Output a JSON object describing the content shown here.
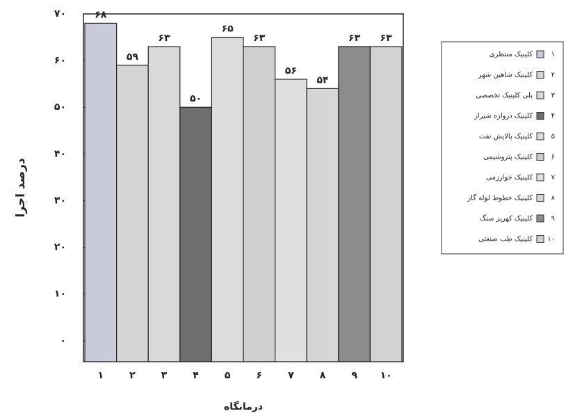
{
  "chart_data": {
    "type": "bar",
    "y_label": "درصد اجرا",
    "x_label": "درمانگاه",
    "categories": [
      "۱",
      "۲",
      "۳",
      "۴",
      "۵",
      "۶",
      "۷",
      "۸",
      "۹",
      "۱۰"
    ],
    "values": [
      68,
      59,
      63,
      50,
      65,
      63,
      56,
      54,
      63,
      63
    ],
    "value_labels": [
      "۶۸",
      "۵۹",
      "۶۳",
      "۵۰",
      "۶۵",
      "۶۳",
      "۵۶",
      "۵۴",
      "۶۳",
      "۶۳"
    ],
    "colors": [
      "#c9cbd8",
      "#d4d4d4",
      "#d9d9d9",
      "#6e6e6e",
      "#dcdcdc",
      "#cfcfcf",
      "#e0e0e0",
      "#d6d6d6",
      "#8c8c8c",
      "#d2d2d2"
    ],
    "legend": [
      "کلینیک منتظری",
      "کلینیک شاهین شهر",
      "پلی کلینیک تخصصی",
      "کلینیک دروازه شیراز",
      "کلینیک پالایش نفت",
      "کلینیک پتروشیمی",
      "کلینیک خوارزمی",
      "کلینیک خطوط لوله گاز",
      "کلینیک کهریز سنگ",
      "کلینیک طب صنعتی"
    ],
    "ylim": [
      -4.5,
      70
    ],
    "yticks": [
      {
        "value": 0,
        "label": "۰"
      },
      {
        "value": 10,
        "label": "۱۰"
      },
      {
        "value": 20,
        "label": "۲۰"
      },
      {
        "value": 30,
        "label": "۳۰"
      },
      {
        "value": 40,
        "label": "۴۰"
      },
      {
        "value": 50,
        "label": "۵۰"
      },
      {
        "value": 60,
        "label": "۶۰"
      },
      {
        "value": 70,
        "label": "۷۰"
      }
    ]
  }
}
